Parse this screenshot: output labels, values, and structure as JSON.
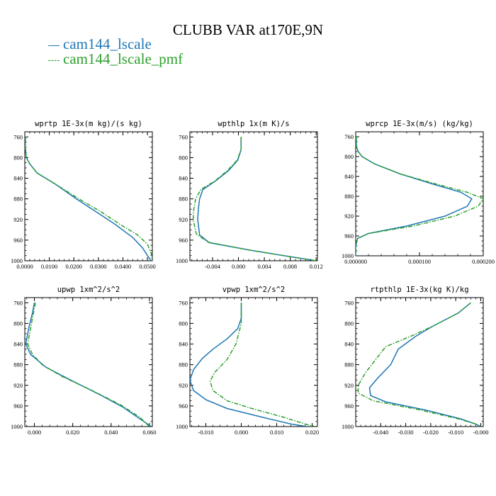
{
  "title": "CLUBB VAR at170E,9N",
  "colors": {
    "cam144_lscale": "#1f77b4",
    "cam144_lscale_pmf": "#2ca02c"
  },
  "legend": [
    {
      "label": "cam144_lscale",
      "color": "#1f77b4",
      "style": "solid"
    },
    {
      "label": "cam144_lscale_pmf",
      "color": "#2ca02c",
      "style": "dash-dot"
    }
  ],
  "chart_data": [
    {
      "type": "line",
      "title": "wprtp  1E-3x(m kg)/(s kg)",
      "xlim": [
        0,
        0.052
      ],
      "ylim": [
        1000,
        750
      ],
      "y_inverted": true,
      "xticks": [
        "0.0000",
        "0.0100",
        "0.0200",
        "0.0300",
        "0.0400",
        "0.0500"
      ],
      "xtick_values": [
        0,
        0.01,
        0.02,
        0.03,
        0.04,
        0.05
      ],
      "yticks": [
        760,
        800,
        840,
        880,
        920,
        960,
        1000
      ],
      "series": [
        {
          "name": "cam144_lscale",
          "points": [
            [
              0.0003,
              760
            ],
            [
              0.0002,
              780
            ],
            [
              0.0006,
              800
            ],
            [
              0.002,
              812
            ],
            [
              0.005,
              830
            ],
            [
              0.012,
              850
            ],
            [
              0.021,
              880
            ],
            [
              0.029,
              905
            ],
            [
              0.037,
              930
            ],
            [
              0.044,
              955
            ],
            [
              0.048,
              975
            ],
            [
              0.05,
              990
            ],
            [
              0.0515,
              1000
            ]
          ]
        },
        {
          "name": "cam144_lscale_pmf",
          "points": [
            [
              0.0003,
              760
            ],
            [
              0.0002,
              780
            ],
            [
              0.0006,
              800
            ],
            [
              0.002,
              812
            ],
            [
              0.005,
              830
            ],
            [
              0.012,
              850
            ],
            [
              0.022,
              880
            ],
            [
              0.031,
              905
            ],
            [
              0.039,
              930
            ],
            [
              0.046,
              950
            ],
            [
              0.05,
              968
            ],
            [
              0.0515,
              985
            ],
            [
              0.052,
              1000
            ]
          ]
        }
      ]
    },
    {
      "type": "line",
      "title": "wpthlp  1x(m K)/s",
      "xlim": [
        -0.0075,
        0.0122
      ],
      "ylim": [
        1000,
        750
      ],
      "y_inverted": true,
      "xticks": [
        "-0.004",
        "0.000",
        "0.004",
        "0.008",
        "0.012"
      ],
      "xtick_values": [
        -0.004,
        0,
        0.004,
        0.008,
        0.012
      ],
      "yticks": [
        760,
        800,
        840,
        880,
        920,
        960,
        1000
      ],
      "series": [
        {
          "name": "cam144_lscale",
          "points": [
            [
              0.0004,
              760
            ],
            [
              0.0004,
              785
            ],
            [
              -0.0001,
              805
            ],
            [
              -0.0015,
              825
            ],
            [
              -0.0035,
              845
            ],
            [
              -0.0055,
              862
            ],
            [
              -0.006,
              880
            ],
            [
              -0.0062,
              900
            ],
            [
              -0.0063,
              920
            ],
            [
              -0.006,
              950
            ],
            [
              -0.0045,
              965
            ],
            [
              0.002,
              980
            ],
            [
              0.008,
              992
            ],
            [
              0.012,
              1000
            ]
          ]
        },
        {
          "name": "cam144_lscale_pmf",
          "points": [
            [
              0.0004,
              760
            ],
            [
              0.0004,
              785
            ],
            [
              -0.0002,
              805
            ],
            [
              -0.0017,
              825
            ],
            [
              -0.0036,
              845
            ],
            [
              -0.0058,
              862
            ],
            [
              -0.0066,
              880
            ],
            [
              -0.0069,
              900
            ],
            [
              -0.007,
              920
            ],
            [
              -0.0065,
              948
            ],
            [
              -0.0047,
              964
            ],
            [
              0.002,
              980
            ],
            [
              0.008,
              992
            ],
            [
              0.012,
              1000
            ]
          ]
        }
      ]
    },
    {
      "type": "line",
      "title": "wprcp  1E-3x(m/s) (kg/kg)",
      "xlim": [
        0,
        0.0002
      ],
      "ylim": [
        1000,
        750
      ],
      "y_inverted": true,
      "xticks": [
        "0.000000",
        "0.000100",
        "0.000200"
      ],
      "xtick_values": [
        0,
        0.0001,
        0.0002
      ],
      "yticks": [
        760,
        800,
        840,
        880,
        920,
        960,
        1000
      ],
      "series": [
        {
          "name": "cam144_lscale",
          "points": [
            [
              1e-06,
              760
            ],
            [
              1e-06,
              780
            ],
            [
              4e-06,
              790
            ],
            [
              1e-05,
              800
            ],
            [
              3e-05,
              815
            ],
            [
              7e-05,
              835
            ],
            [
              0.00012,
              855
            ],
            [
              0.000165,
              872
            ],
            [
              0.000182,
              885
            ],
            [
              0.000175,
              900
            ],
            [
              0.00014,
              920
            ],
            [
              8e-05,
              940
            ],
            [
              2e-05,
              955
            ],
            [
              3e-06,
              965
            ],
            [
              0,
              980
            ],
            [
              0,
              1000
            ]
          ]
        },
        {
          "name": "cam144_lscale_pmf",
          "points": [
            [
              1e-06,
              760
            ],
            [
              1e-06,
              780
            ],
            [
              4e-06,
              790
            ],
            [
              1e-05,
              800
            ],
            [
              3e-05,
              815
            ],
            [
              7e-05,
              835
            ],
            [
              0.000125,
              855
            ],
            [
              0.000175,
              872
            ],
            [
              0.0002,
              885
            ],
            [
              0.000192,
              900
            ],
            [
              0.000155,
              920
            ],
            [
              9e-05,
              940
            ],
            [
              2e-05,
              955
            ],
            [
              3e-06,
              965
            ],
            [
              0,
              980
            ],
            [
              0,
              1000
            ]
          ]
        }
      ]
    },
    {
      "type": "line",
      "title": "upwp  1xm^2/s^2",
      "xlim": [
        -0.005,
        0.0615
      ],
      "ylim": [
        1000,
        750
      ],
      "y_inverted": true,
      "xticks": [
        "0.000",
        "0.020",
        "0.040",
        "0.060"
      ],
      "xtick_values": [
        0,
        0.02,
        0.04,
        0.06
      ],
      "yticks": [
        760,
        800,
        840,
        880,
        920,
        960,
        1000
      ],
      "series": [
        {
          "name": "cam144_lscale",
          "points": [
            [
              0,
              760
            ],
            [
              -0.001,
              780
            ],
            [
              -0.003,
              810
            ],
            [
              -0.0045,
              840
            ],
            [
              -0.002,
              860
            ],
            [
              0.006,
              885
            ],
            [
              0.02,
              912
            ],
            [
              0.034,
              938
            ],
            [
              0.046,
              962
            ],
            [
              0.055,
              985
            ],
            [
              0.061,
              1000
            ]
          ]
        },
        {
          "name": "cam144_lscale_pmf",
          "points": [
            [
              0.0005,
              760
            ],
            [
              -0.0005,
              780
            ],
            [
              -0.002,
              810
            ],
            [
              -0.0035,
              840
            ],
            [
              -0.001,
              860
            ],
            [
              0.004,
              880
            ],
            [
              0.014,
              902
            ],
            [
              0.03,
              930
            ],
            [
              0.045,
              958
            ],
            [
              0.055,
              982
            ],
            [
              0.06,
              1000
            ]
          ]
        }
      ]
    },
    {
      "type": "line",
      "title": "vpwp  1xm^2/s^2",
      "xlim": [
        -0.0145,
        0.0215
      ],
      "ylim": [
        1000,
        750
      ],
      "y_inverted": true,
      "xticks": [
        "-0.010",
        "0.000",
        "0.010",
        "0.020"
      ],
      "xtick_values": [
        -0.01,
        0,
        0.01,
        0.02
      ],
      "yticks": [
        760,
        800,
        840,
        880,
        920,
        960,
        1000
      ],
      "series": [
        {
          "name": "cam144_lscale",
          "points": [
            [
              0,
              760
            ],
            [
              0,
              790
            ],
            [
              -0.001,
              810
            ],
            [
              -0.004,
              830
            ],
            [
              -0.008,
              850
            ],
            [
              -0.011,
              868
            ],
            [
              -0.0135,
              890
            ],
            [
              -0.0145,
              910
            ],
            [
              -0.0135,
              930
            ],
            [
              -0.01,
              948
            ],
            [
              -0.004,
              965
            ],
            [
              0.006,
              982
            ],
            [
              0.014,
              995
            ],
            [
              0.0185,
              1000
            ]
          ]
        },
        {
          "name": "cam144_lscale_pmf",
          "points": [
            [
              0,
              760
            ],
            [
              0,
              800
            ],
            [
              -0.0015,
              840
            ],
            [
              -0.004,
              870
            ],
            [
              -0.0075,
              895
            ],
            [
              -0.0088,
              912
            ],
            [
              -0.008,
              930
            ],
            [
              -0.004,
              950
            ],
            [
              0.003,
              965
            ],
            [
              0.012,
              982
            ],
            [
              0.018,
              995
            ],
            [
              0.0208,
              1000
            ]
          ]
        }
      ]
    },
    {
      "type": "line",
      "title": "rtpthlp  1E-3x(kg K)/kg",
      "xlim": [
        -0.05,
        0.001
      ],
      "ylim": [
        1000,
        750
      ],
      "y_inverted": true,
      "xticks": [
        "-0.040",
        "-0.030",
        "-0.020",
        "-0.010",
        "-0.000"
      ],
      "xtick_values": [
        -0.04,
        -0.03,
        -0.02,
        -0.01,
        0
      ],
      "yticks": [
        760,
        800,
        840,
        880,
        920,
        960,
        1000
      ],
      "series": [
        {
          "name": "cam144_lscale",
          "points": [
            [
              -0.004,
              760
            ],
            [
              -0.009,
              780
            ],
            [
              -0.019,
              805
            ],
            [
              -0.026,
              825
            ],
            [
              -0.033,
              850
            ],
            [
              -0.036,
              880
            ],
            [
              -0.041,
              905
            ],
            [
              -0.0445,
              925
            ],
            [
              -0.044,
              940
            ],
            [
              -0.038,
              952
            ],
            [
              -0.022,
              968
            ],
            [
              -0.008,
              985
            ],
            [
              -0.002,
              995
            ],
            [
              0,
              1000
            ]
          ]
        },
        {
          "name": "cam144_lscale_pmf",
          "points": [
            [
              -0.004,
              760
            ],
            [
              -0.009,
              780
            ],
            [
              -0.019,
              805
            ],
            [
              -0.028,
              825
            ],
            [
              -0.038,
              845
            ],
            [
              -0.042,
              870
            ],
            [
              -0.046,
              895
            ],
            [
              -0.049,
              920
            ],
            [
              -0.049,
              935
            ],
            [
              -0.043,
              950
            ],
            [
              -0.024,
              968
            ],
            [
              -0.009,
              985
            ],
            [
              -0.002,
              995
            ],
            [
              0,
              1000
            ]
          ]
        }
      ]
    }
  ]
}
